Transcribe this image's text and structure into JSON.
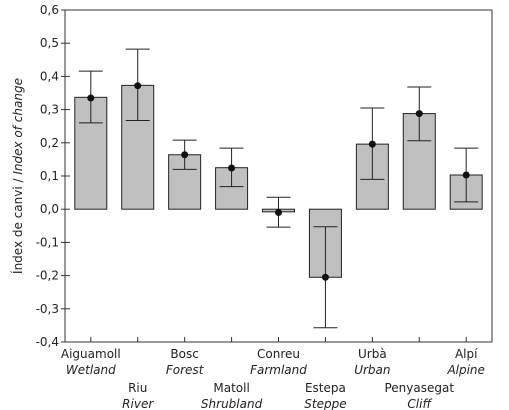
{
  "chart_data": {
    "type": "bar",
    "title": "",
    "ylabel": {
      "ca": "Índex de canvi / ",
      "en": "Index of change"
    },
    "ylim": [
      -0.4,
      0.6
    ],
    "yticks": [
      "-0,4",
      "-0,3",
      "-0,2",
      "-0,1",
      "0,0",
      "0,1",
      "0,2",
      "0,3",
      "0,4",
      "0,5",
      "0,6"
    ],
    "categories": [
      {
        "ca": "Aiguamoll",
        "en": "Wetland",
        "row": 0
      },
      {
        "ca": "Riu",
        "en": "River",
        "row": 1
      },
      {
        "ca": "Bosc",
        "en": "Forest",
        "row": 0
      },
      {
        "ca": "Matoll",
        "en": "Shrubland",
        "row": 1
      },
      {
        "ca": "Conreu",
        "en": "Farmland",
        "row": 0
      },
      {
        "ca": "Estepa",
        "en": "Steppe",
        "row": 1
      },
      {
        "ca": "Urbà",
        "en": "Urban",
        "row": 0
      },
      {
        "ca": "Penyasegat",
        "en": "Cliff",
        "row": 1
      },
      {
        "ca": "Alpí",
        "en": "Alpine",
        "row": 0
      }
    ],
    "values": [
      0.337,
      0.373,
      0.164,
      0.125,
      -0.008,
      -0.205,
      0.196,
      0.288,
      0.103
    ],
    "points": [
      0.335,
      0.372,
      0.164,
      0.124,
      -0.01,
      -0.205,
      0.196,
      0.288,
      0.103
    ],
    "error_low": [
      0.26,
      0.267,
      0.12,
      0.068,
      -0.054,
      -0.357,
      0.09,
      0.206,
      0.022
    ],
    "error_high": [
      0.416,
      0.482,
      0.208,
      0.184,
      0.036,
      -0.053,
      0.305,
      0.368,
      0.184
    ],
    "colors": {
      "bar_fill": "#c0c0c0",
      "bar_stroke": "#222222",
      "point": "#111111"
    }
  }
}
